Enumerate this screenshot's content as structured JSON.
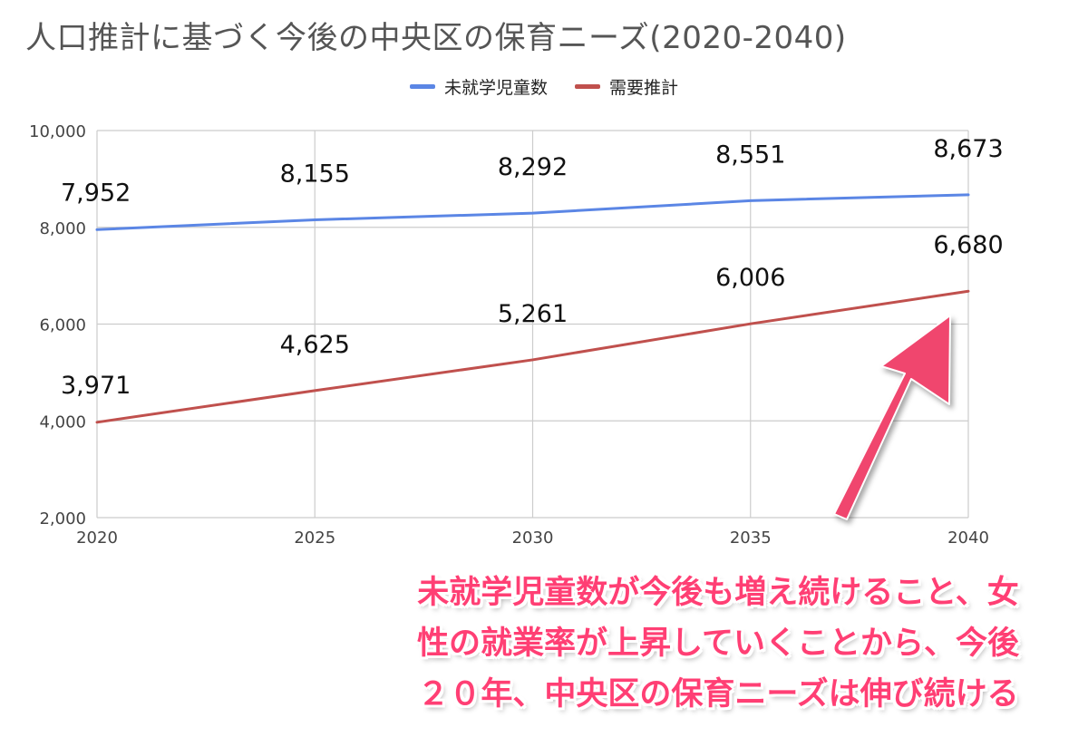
{
  "chart_data": {
    "type": "line",
    "title": "人口推計に基づく今後の中央区の保育ニーズ(2020-2040)",
    "x": [
      "2020",
      "2025",
      "2030",
      "2035",
      "2040"
    ],
    "ylim": [
      2000,
      10000
    ],
    "yticks": [
      "2,000",
      "4,000",
      "6,000",
      "8,000",
      "10,000"
    ],
    "grid": true,
    "legend_position": "top-center",
    "series": [
      {
        "name": "未就学児童数",
        "color": "#5b86e5",
        "values": [
          7952,
          8155,
          8292,
          8551,
          8673
        ],
        "labels": [
          "7,952",
          "8,155",
          "8,292",
          "8,551",
          "8,673"
        ]
      },
      {
        "name": "需要推計",
        "color": "#c0504d",
        "values": [
          3971,
          4625,
          5261,
          6006,
          6680
        ],
        "labels": [
          "3,971",
          "4,625",
          "5,261",
          "6,006",
          "6,680"
        ]
      }
    ]
  },
  "annotation": {
    "lines": [
      "未就学児童数が今後も増え続けること、女",
      "性の就業率が上昇していくことから、今後",
      "２０年、中央区の保育ニーズは伸び続ける"
    ],
    "color": "#ff3f74",
    "arrow_color": "#f0466e"
  }
}
